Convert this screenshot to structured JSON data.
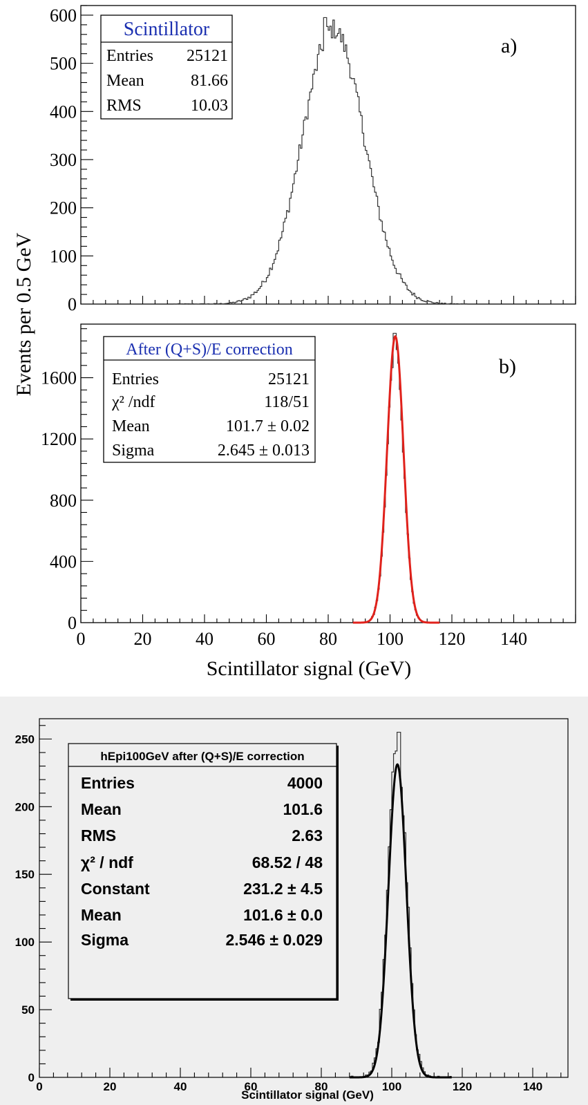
{
  "chart_data": [
    {
      "id": "top",
      "type": "area",
      "bin_width": 0.5,
      "ylabel": "Events per 0.5 GeV",
      "xlabel": "Scintillator signal (GeV)",
      "xlim": [
        0,
        160
      ],
      "x_ticks": [
        "0",
        "20",
        "40",
        "60",
        "80",
        "100",
        "120",
        "140"
      ],
      "panels": [
        {
          "id": "a",
          "label": "a)",
          "ylim": [
            0,
            620
          ],
          "y_ticks": [
            "0",
            "100",
            "200",
            "300",
            "400",
            "500",
            "600"
          ],
          "histogram": {
            "shape": "gaussian",
            "mean": 81.66,
            "rms": 10.03,
            "entries": 25121,
            "peak_value": 595,
            "range": [
              30,
              125
            ]
          },
          "stats": {
            "title": "Scintillator",
            "rows": [
              {
                "label": "Entries",
                "value": "25121"
              },
              {
                "label": "Mean",
                "value": "81.66"
              },
              {
                "label": "RMS",
                "value": "10.03"
              }
            ]
          }
        },
        {
          "id": "b",
          "label": "b)",
          "ylim": [
            0,
            1950
          ],
          "y_ticks": [
            "0",
            "400",
            "800",
            "1200",
            "1600"
          ],
          "histogram": {
            "shape": "gaussian",
            "mean": 101.7,
            "rms": 2.645,
            "entries": 25121,
            "peak_value": 1890,
            "range": [
              88,
              116
            ]
          },
          "fit": {
            "color": "#e0211b",
            "mean": 101.7,
            "sigma": 2.645,
            "constant": 1870,
            "range": [
              88,
              116
            ]
          },
          "stats": {
            "title": "After (Q+S)/E correction",
            "rows": [
              {
                "label": "Entries",
                "value": "25121"
              },
              {
                "label": "χ² /ndf",
                "value": "118/51"
              },
              {
                "label": "Mean",
                "value": "101.7 ± 0.02"
              },
              {
                "label": "Sigma",
                "value": "2.645 ± 0.013"
              }
            ]
          }
        }
      ]
    },
    {
      "id": "bottom",
      "type": "area",
      "xlabel": "Scintillator signal (GeV)",
      "xlim": [
        0,
        150
      ],
      "ylim": [
        0,
        265
      ],
      "x_ticks": [
        "0",
        "20",
        "40",
        "60",
        "80",
        "100",
        "120",
        "140"
      ],
      "y_ticks": [
        "0",
        "50",
        "100",
        "150",
        "200",
        "250"
      ],
      "histogram": {
        "shape": "gaussian",
        "mean": 101.6,
        "rms": 2.63,
        "entries": 4000,
        "peak_value": 255,
        "range": [
          88,
          117
        ]
      },
      "fit": {
        "color": "#000000",
        "constant": 231.2,
        "mean": 101.6,
        "sigma": 2.546,
        "range": [
          88,
          117
        ]
      },
      "stats": {
        "title": "hEpi100GeV after (Q+S)/E correction",
        "rows": [
          {
            "label": "Entries",
            "value": "4000"
          },
          {
            "label": "Mean",
            "value": "101.6"
          },
          {
            "label": "RMS",
            "value": "2.63"
          },
          {
            "label": "χ² / ndf",
            "value": "68.52 / 48"
          },
          {
            "label": "Constant",
            "value": "231.2 ± 4.5"
          },
          {
            "label": "Mean",
            "value": "101.6 ± 0.0"
          },
          {
            "label": "Sigma",
            "value": "2.546 ± 0.029"
          }
        ]
      }
    }
  ]
}
